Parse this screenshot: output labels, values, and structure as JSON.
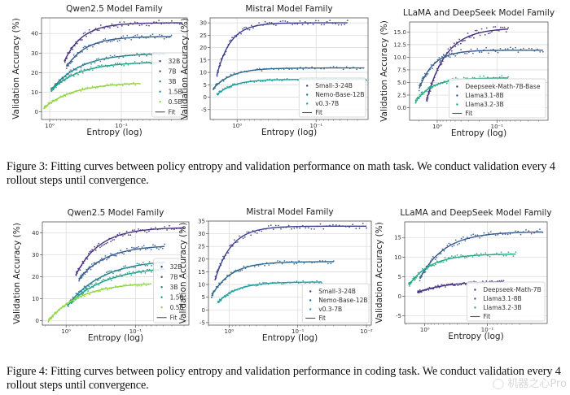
{
  "figures": [
    {
      "caption": "Figure 3: Fitting curves between policy entropy and validation performance on math task.  We conduct validation every 4 rollout steps until convergence."
    },
    {
      "caption": "Figure 4: Fitting curves between policy entropy and validation performance in coding task.  We conduct validation every 4 rollout steps until convergence."
    }
  ],
  "watermark": "机器之心Pro",
  "chart_data": [
    {
      "id": "fig3-qwen",
      "type": "scatter",
      "title": "Qwen2.5 Model Family",
      "xlabel": "Entropy (log)",
      "ylabel": "Validation Accuracy (%)",
      "xscale": "log",
      "x_reversed": true,
      "xticks": [
        {
          "value": 1,
          "label": "10⁰"
        },
        {
          "value": 0.1,
          "label": "10⁻¹"
        }
      ],
      "yticks": [
        0,
        10,
        20,
        30,
        40
      ],
      "xlim": [
        1.3,
        0.012
      ],
      "ylim": [
        -4,
        48
      ],
      "grid": true,
      "legend": "lower-right",
      "fit_label": "Fit",
      "series": [
        {
          "name": "32B",
          "color": "#46327e",
          "x_range": [
            0.62,
            0.014
          ],
          "plateau": 45.5,
          "drop": 22,
          "k": 2.2,
          "end_start": 26
        },
        {
          "name": "7B",
          "color": "#365c8d",
          "x_range": [
            0.58,
            0.02
          ],
          "plateau": 38.5,
          "drop": 17,
          "k": 2.0,
          "end_start": 23
        },
        {
          "name": "3B",
          "color": "#277f8e",
          "x_range": [
            0.95,
            0.025
          ],
          "plateau": 30.0,
          "drop": 21,
          "k": 1.4,
          "end_start": 11
        },
        {
          "name": "1.5B",
          "color": "#1fa187",
          "x_range": [
            0.95,
            0.03
          ],
          "plateau": 25.5,
          "drop": 16,
          "k": 1.4,
          "end_start": 11
        },
        {
          "name": "0.5B",
          "color": "#8fd744",
          "x_range": [
            1.2,
            0.055
          ],
          "plateau": 15.0,
          "drop": 13,
          "k": 1.3,
          "end_start": 2
        }
      ]
    },
    {
      "id": "fig3-mistral",
      "type": "scatter",
      "title": "Mistral Model Family",
      "xlabel": "Entropy (log)",
      "ylabel": "Validation Accuracy (%)",
      "xscale": "log",
      "x_reversed": true,
      "xticks": [
        {
          "value": 1,
          "label": "10⁰"
        },
        {
          "value": 0.1,
          "label": "10⁻¹"
        }
      ],
      "yticks": [
        -5,
        0,
        5,
        10,
        15,
        20,
        25,
        30
      ],
      "xlim": [
        2.2,
        0.022
      ],
      "ylim": [
        -9,
        32
      ],
      "grid": true,
      "legend": "lower-right",
      "fit_label": "Fit",
      "series": [
        {
          "name": "Small-3-24B",
          "color": "#3b3f8c",
          "x_range": [
            1.8,
            0.04
          ],
          "plateau": 30.0,
          "drop": 21,
          "k": 3.2,
          "end_start": 9
        },
        {
          "name": "Nemo-Base-12B",
          "color": "#31688e",
          "x_range": [
            2.0,
            0.025
          ],
          "plateau": 11.8,
          "drop": 8,
          "k": 2.4,
          "end_start": 3.5
        },
        {
          "name": "v0.3-7B",
          "color": "#21a0a0",
          "x_range": [
            1.8,
            0.023
          ],
          "plateau": 7.2,
          "drop": 6,
          "k": 2.6,
          "end_start": 1
        }
      ]
    },
    {
      "id": "fig3-llama",
      "type": "scatter",
      "title": "LLaMA and DeepSeek Model Family",
      "xlabel": "Entropy (log)",
      "ylabel": "Validation Accuracy (%)",
      "xscale": "log",
      "x_reversed": true,
      "xticks": [
        {
          "value": 1,
          "label": "10⁰"
        },
        {
          "value": 0.1,
          "label": "10⁻¹"
        }
      ],
      "yticks": [
        0.0,
        2.5,
        5.0,
        7.5,
        10.0,
        12.5,
        15.0
      ],
      "ytick_format": "fixed1",
      "xlim": [
        2.9,
        0.014
      ],
      "ylim": [
        -2.5,
        17
      ],
      "grid": true,
      "legend": "lower-right",
      "fit_label": "Fit",
      "series": [
        {
          "name": "Deepseek-Math-7B-Base",
          "color": "#46337e",
          "x_range": [
            1.5,
            0.065
          ],
          "plateau": 15.8,
          "drop": 14,
          "k": 1.7,
          "end_start": 1.5
        },
        {
          "name": "Llama3.1-8B",
          "color": "#365c8d",
          "x_range": [
            2.0,
            0.017
          ],
          "plateau": 11.4,
          "drop": 7.5,
          "k": 2.3,
          "end_start": 3.8
        },
        {
          "name": "Llama3.2-3B",
          "color": "#22a884",
          "x_range": [
            2.3,
            0.065
          ],
          "plateau": 5.9,
          "drop": 4.7,
          "k": 2.0,
          "end_start": 1.2
        }
      ]
    },
    {
      "id": "fig4-qwen",
      "type": "scatter",
      "title": "Qwen2.5 Model Family",
      "xlabel": "Entropy (log)",
      "ylabel": "Validation Accuracy (%)",
      "xscale": "log",
      "x_reversed": true,
      "xticks": [
        {
          "value": 1,
          "label": "10⁰"
        },
        {
          "value": 0.1,
          "label": "10⁻¹"
        }
      ],
      "yticks": [
        0,
        10,
        20,
        30,
        40
      ],
      "xlim": [
        2.2,
        0.017
      ],
      "ylim": [
        -2,
        45
      ],
      "grid": true,
      "legend": "lower-right",
      "fit_label": "Fit",
      "series": [
        {
          "name": "32B",
          "color": "#46327e",
          "x_range": [
            0.72,
            0.02
          ],
          "plateau": 42.5,
          "drop": 21,
          "k": 1.6,
          "end_start": 21
        },
        {
          "name": "7B",
          "color": "#365c8d",
          "x_range": [
            0.65,
            0.038
          ],
          "plateau": 34.5,
          "drop": 15,
          "k": 1.4,
          "end_start": 19
        },
        {
          "name": "3B",
          "color": "#277f8e",
          "x_range": [
            0.95,
            0.038
          ],
          "plateau": 28.0,
          "drop": 20,
          "k": 1.1,
          "end_start": 7
        },
        {
          "name": "1.5B",
          "color": "#1fa187",
          "x_range": [
            0.95,
            0.038
          ],
          "plateau": 25.0,
          "drop": 18,
          "k": 1.0,
          "end_start": 7
        },
        {
          "name": "0.5B",
          "color": "#8fd744",
          "x_range": [
            1.8,
            0.06
          ],
          "plateau": 17.5,
          "drop": 17,
          "k": 1.2,
          "end_start": 0
        }
      ]
    },
    {
      "id": "fig4-mistral",
      "type": "scatter",
      "title": "Mistral Model Family",
      "xlabel": "Entropy (log)",
      "ylabel": "Validation Accuracy (%)",
      "xscale": "log",
      "x_reversed": true,
      "xticks": [
        {
          "value": 1,
          "label": "10⁰"
        },
        {
          "value": 0.1,
          "label": "10⁻¹"
        },
        {
          "value": 0.01,
          "label": "10⁻²"
        }
      ],
      "yticks": [
        -5,
        0,
        5,
        10,
        15,
        20,
        25,
        30,
        35
      ],
      "xlim": [
        2.0,
        0.0085
      ],
      "ylim": [
        -6,
        35
      ],
      "grid": true,
      "legend": "lower-right",
      "fit_label": "Fit",
      "series": [
        {
          "name": "Small-3-24B",
          "color": "#3b3f8c",
          "x_range": [
            1.6,
            0.01
          ],
          "plateau": 33.0,
          "drop": 21,
          "k": 2.3,
          "end_start": 12
        },
        {
          "name": "Nemo-Base-12B",
          "color": "#31688e",
          "x_range": [
            1.8,
            0.03
          ],
          "plateau": 19.0,
          "drop": 13.5,
          "k": 2.0,
          "end_start": 5.5
        },
        {
          "name": "v0.3-7B",
          "color": "#21a0a0",
          "x_range": [
            1.45,
            0.045
          ],
          "plateau": 11.0,
          "drop": 8,
          "k": 2.0,
          "end_start": 3
        }
      ]
    },
    {
      "id": "fig4-llama",
      "type": "scatter",
      "title": "LLaMA and DeepSeek Model Family",
      "xlabel": "Entropy (log)",
      "ylabel": "Validation Accuracy (%)",
      "xscale": "log",
      "x_reversed": true,
      "xticks": [
        {
          "value": 1,
          "label": "10⁰"
        },
        {
          "value": 0.1,
          "label": "10⁻¹"
        }
      ],
      "yticks": [
        -5,
        0,
        5,
        10,
        15
      ],
      "xlim": [
        2.1,
        0.011
      ],
      "ylim": [
        -7,
        19
      ],
      "grid": true,
      "legend": "lower-right",
      "fit_label": "Fit",
      "series": [
        {
          "name": "Deepseek-Math-7B",
          "color": "#46337e",
          "x_range": [
            1.3,
            0.055
          ],
          "plateau": 3.8,
          "drop": 3,
          "k": 1.2,
          "end_start": 1
        },
        {
          "name": "Llama3.1-8B",
          "color": "#365c8d",
          "x_range": [
            1.2,
            0.013
          ],
          "plateau": 16.5,
          "drop": 12,
          "k": 1.4,
          "end_start": 4.5
        },
        {
          "name": "Llama3.2-3B",
          "color": "#22a884",
          "x_range": [
            1.8,
            0.035
          ],
          "plateau": 10.8,
          "drop": 8,
          "k": 1.6,
          "end_start": 2.8
        }
      ]
    }
  ]
}
